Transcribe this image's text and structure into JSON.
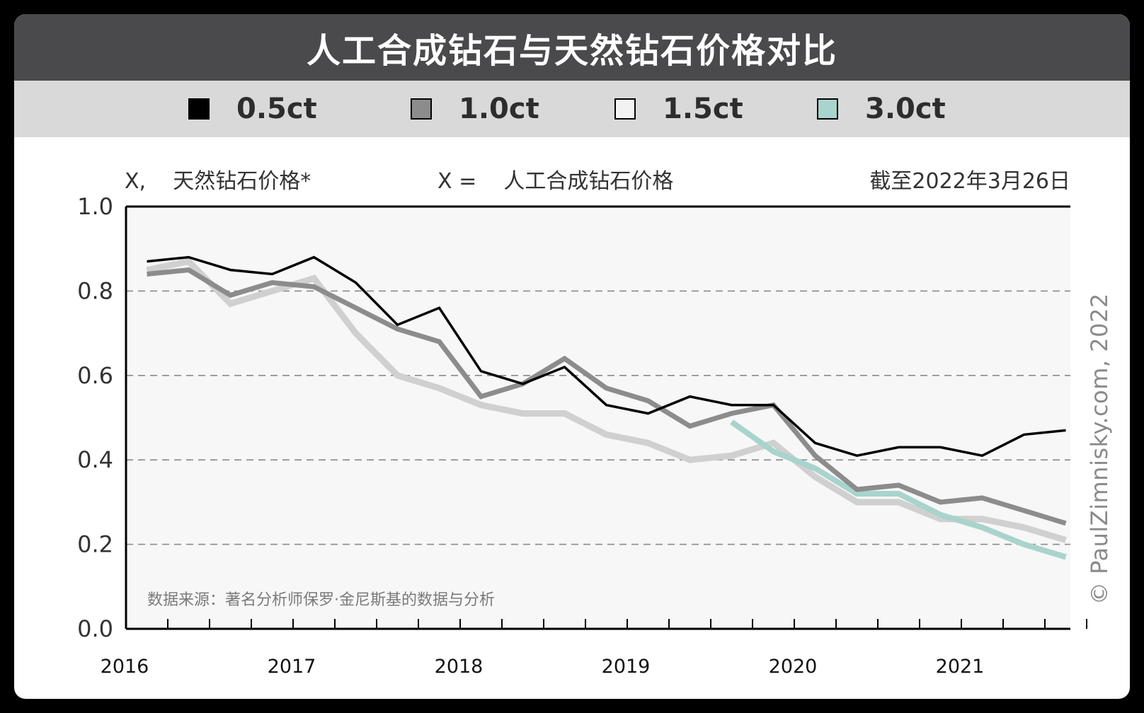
{
  "title": "人工合成钻石与天然钻石价格对比",
  "legend": [
    {
      "label": "0.5ct",
      "color": "#000000"
    },
    {
      "label": "1.0ct",
      "color": "#8c8c8c"
    },
    {
      "label": "1.5ct",
      "color": "#f2f2f2"
    },
    {
      "label": "3.0ct",
      "color": "#a9d3cd"
    }
  ],
  "subheader": {
    "left": "X,    天然钻石价格*",
    "middle": "X =    人工合成钻石价格",
    "right": "截至2022年3月26日"
  },
  "source_note": "数据来源：著名分析师保罗·金尼斯基的数据与分析",
  "copyright": "© PaulZimnisky.com, 2022",
  "chart_data": {
    "type": "line",
    "x_label_positions": "year labels under each year start",
    "xlim": [
      2016.0,
      2021.75
    ],
    "ylim": [
      0.0,
      1.0
    ],
    "yticks": [
      "0.0",
      "0.2",
      "0.4",
      "0.6",
      "0.8",
      "1.0"
    ],
    "xticks": [
      "2016",
      "2017",
      "2018",
      "2019",
      "2020",
      "2021"
    ],
    "grid": true,
    "series": [
      {
        "name": "0.5ct",
        "color": "#000000",
        "x": [
          2016.125,
          2016.375,
          2016.625,
          2016.875,
          2017.125,
          2017.375,
          2017.625,
          2017.875,
          2018.125,
          2018.375,
          2018.625,
          2018.875,
          2019.125,
          2019.375,
          2019.625,
          2019.875,
          2020.125,
          2020.375,
          2020.625,
          2020.875,
          2021.125,
          2021.375,
          2021.625
        ],
        "y": [
          0.87,
          0.88,
          0.85,
          0.84,
          0.88,
          0.82,
          0.72,
          0.76,
          0.61,
          0.58,
          0.62,
          0.53,
          0.51,
          0.55,
          0.53,
          0.53,
          0.44,
          0.41,
          0.43,
          0.43,
          0.41,
          0.46,
          0.47
        ]
      },
      {
        "name": "1.0ct",
        "color": "#8c8c8c",
        "x": [
          2016.125,
          2016.375,
          2016.625,
          2016.875,
          2017.125,
          2017.375,
          2017.625,
          2017.875,
          2018.125,
          2018.375,
          2018.625,
          2018.875,
          2019.125,
          2019.375,
          2019.625,
          2019.875,
          2020.125,
          2020.375,
          2020.625,
          2020.875,
          2021.125,
          2021.375,
          2021.625
        ],
        "y": [
          0.84,
          0.85,
          0.79,
          0.82,
          0.81,
          0.76,
          0.71,
          0.68,
          0.55,
          0.58,
          0.64,
          0.57,
          0.54,
          0.48,
          0.51,
          0.53,
          0.41,
          0.33,
          0.34,
          0.3,
          0.31,
          0.28,
          0.25
        ]
      },
      {
        "name": "1.5ct",
        "color": "#d0d0d0",
        "x": [
          2016.125,
          2016.375,
          2016.625,
          2016.875,
          2017.125,
          2017.375,
          2017.625,
          2017.875,
          2018.125,
          2018.375,
          2018.625,
          2018.875,
          2019.125,
          2019.375,
          2019.625,
          2019.875,
          2020.125,
          2020.375,
          2020.625,
          2020.875,
          2021.125,
          2021.375,
          2021.625
        ],
        "y": [
          0.85,
          0.87,
          0.77,
          0.8,
          0.83,
          0.7,
          0.6,
          0.57,
          0.53,
          0.51,
          0.51,
          0.46,
          0.44,
          0.4,
          0.41,
          0.44,
          0.36,
          0.3,
          0.3,
          0.26,
          0.26,
          0.24,
          0.21
        ]
      },
      {
        "name": "3.0ct",
        "color": "#a9d3cd",
        "x": [
          2019.625,
          2019.875,
          2020.125,
          2020.375,
          2020.625,
          2020.875,
          2021.125,
          2021.375,
          2021.625
        ],
        "y": [
          0.49,
          0.42,
          0.38,
          0.32,
          0.32,
          0.27,
          0.24,
          0.2,
          0.17
        ]
      }
    ]
  }
}
